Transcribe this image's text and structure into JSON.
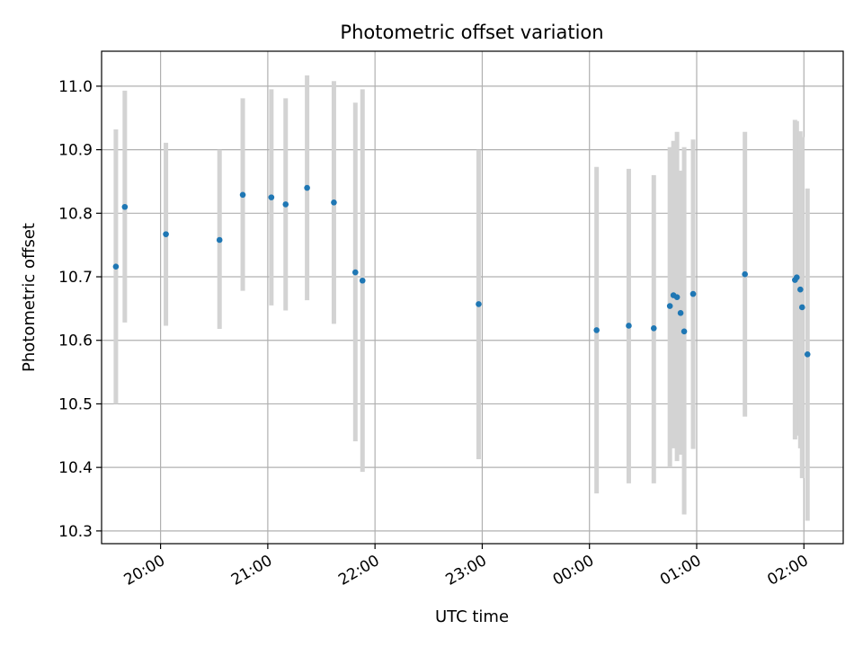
{
  "chart_data": {
    "type": "scatter",
    "title": "Photometric offset variation",
    "xlabel": "UTC time",
    "ylabel": "Photometric offset",
    "grid": true,
    "ylim": [
      10.28,
      11.055
    ],
    "xlim": [
      "19:27",
      "02:22"
    ],
    "x_ticks": [
      "20:00",
      "21:00",
      "22:00",
      "23:00",
      "00:00",
      "01:00",
      "02:00"
    ],
    "y_ticks": [
      "10.3",
      "10.4",
      "10.5",
      "10.6",
      "10.7",
      "10.8",
      "10.9",
      "11.0"
    ],
    "series": [
      {
        "points": [
          {
            "x": "19:35",
            "y": 10.716,
            "ylow": 10.5,
            "yhigh": 10.932
          },
          {
            "x": "19:40",
            "y": 10.81,
            "ylow": 10.628,
            "yhigh": 10.993
          },
          {
            "x": "20:03",
            "y": 10.767,
            "ylow": 10.623,
            "yhigh": 10.911
          },
          {
            "x": "20:33",
            "y": 10.758,
            "ylow": 10.618,
            "yhigh": 10.9
          },
          {
            "x": "20:46",
            "y": 10.829,
            "ylow": 10.678,
            "yhigh": 10.981
          },
          {
            "x": "21:02",
            "y": 10.825,
            "ylow": 10.655,
            "yhigh": 10.995
          },
          {
            "x": "21:10",
            "y": 10.814,
            "ylow": 10.647,
            "yhigh": 10.981
          },
          {
            "x": "21:22",
            "y": 10.84,
            "ylow": 10.663,
            "yhigh": 11.017
          },
          {
            "x": "21:37",
            "y": 10.817,
            "ylow": 10.626,
            "yhigh": 11.008
          },
          {
            "x": "21:49",
            "y": 10.707,
            "ylow": 10.441,
            "yhigh": 10.974
          },
          {
            "x": "21:53",
            "y": 10.694,
            "ylow": 10.393,
            "yhigh": 10.995
          },
          {
            "x": "22:58",
            "y": 10.657,
            "ylow": 10.413,
            "yhigh": 10.9
          },
          {
            "x": "00:04",
            "y": 10.616,
            "ylow": 10.359,
            "yhigh": 10.873
          },
          {
            "x": "00:22",
            "y": 10.623,
            "ylow": 10.375,
            "yhigh": 10.87
          },
          {
            "x": "00:36",
            "y": 10.619,
            "ylow": 10.375,
            "yhigh": 10.86
          },
          {
            "x": "00:45",
            "y": 10.654,
            "ylow": 10.4,
            "yhigh": 10.904
          },
          {
            "x": "00:47",
            "y": 10.671,
            "ylow": 10.43,
            "yhigh": 10.914
          },
          {
            "x": "00:49",
            "y": 10.668,
            "ylow": 10.41,
            "yhigh": 10.928
          },
          {
            "x": "00:51",
            "y": 10.643,
            "ylow": 10.42,
            "yhigh": 10.867
          },
          {
            "x": "00:53",
            "y": 10.614,
            "ylow": 10.326,
            "yhigh": 10.904
          },
          {
            "x": "00:58",
            "y": 10.673,
            "ylow": 10.429,
            "yhigh": 10.916
          },
          {
            "x": "01:27",
            "y": 10.704,
            "ylow": 10.48,
            "yhigh": 10.928
          },
          {
            "x": "01:55",
            "y": 10.695,
            "ylow": 10.444,
            "yhigh": 10.947
          },
          {
            "x": "01:56",
            "y": 10.699,
            "ylow": 10.45,
            "yhigh": 10.945
          },
          {
            "x": "01:58",
            "y": 10.68,
            "ylow": 10.43,
            "yhigh": 10.929
          },
          {
            "x": "01:59",
            "y": 10.652,
            "ylow": 10.383,
            "yhigh": 10.92
          },
          {
            "x": "02:02",
            "y": 10.578,
            "ylow": 10.316,
            "yhigh": 10.839
          }
        ],
        "marker_color": "#1f77b4",
        "errorbar_color": "#d3d3d3"
      }
    ]
  }
}
